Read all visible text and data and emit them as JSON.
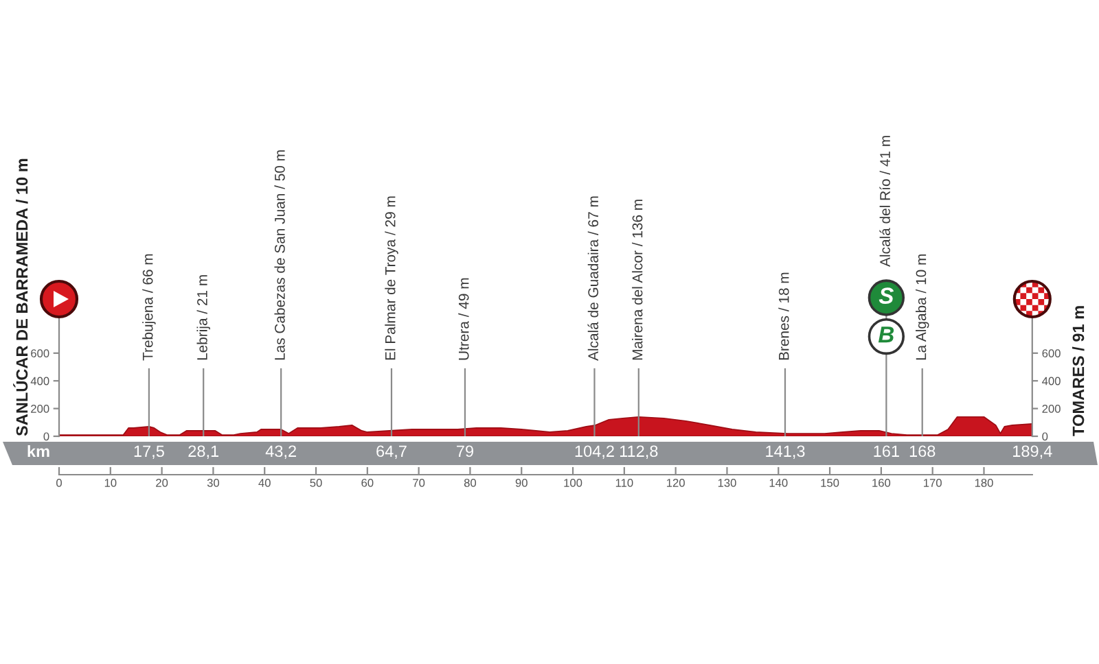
{
  "chart_data": {
    "type": "area",
    "color": "#c8141e",
    "x": [
      0,
      12.5,
      13.5,
      14.5,
      17.5,
      18.5,
      19.7,
      21,
      23.5,
      24.8,
      28.1,
      30.4,
      31.7,
      34,
      35.3,
      38.5,
      39.3,
      43.2,
      44.7,
      46.4,
      50.9,
      54.5,
      57,
      58.9,
      60,
      64.3,
      68.7,
      77.6,
      81.2,
      86,
      90,
      92.8,
      95.5,
      99,
      102.6,
      104.4,
      107,
      109.7,
      112.8,
      117.7,
      122,
      126.6,
      131,
      135.6,
      141.8,
      149,
      152.5,
      156,
      159.6,
      162,
      165,
      171,
      173,
      174.8,
      180,
      182.3,
      183.2,
      184,
      185.5,
      189.4
    ],
    "values": [
      10,
      10,
      60,
      60,
      70,
      60,
      30,
      10,
      10,
      40,
      40,
      40,
      10,
      10,
      20,
      30,
      50,
      50,
      20,
      60,
      60,
      70,
      80,
      40,
      30,
      40,
      50,
      50,
      60,
      60,
      50,
      40,
      30,
      40,
      70,
      80,
      120,
      130,
      140,
      130,
      110,
      80,
      50,
      30,
      20,
      20,
      30,
      40,
      40,
      20,
      10,
      10,
      50,
      140,
      140,
      80,
      20,
      70,
      80,
      90
    ],
    "xlim": [
      0,
      189.4
    ],
    "xticks": [
      0,
      10,
      20,
      30,
      40,
      50,
      60,
      70,
      80,
      90,
      100,
      110,
      120,
      130,
      140,
      150,
      160,
      170,
      180
    ],
    "ylim": [
      0,
      1100
    ],
    "yticks": [
      0,
      200,
      400,
      600
    ],
    "y2lim": [
      0,
      1100
    ],
    "y2ticks": [
      0,
      200,
      400,
      600
    ],
    "ylabel": "SANLÚCAR DE BARRAMEDA / 10 m",
    "y2label": "TOMARES / 91 m",
    "x2label": "km",
    "x2lim": [
      0,
      189.4
    ],
    "x2ticks": [
      {
        "value": 17.5,
        "label": "17,5"
      },
      {
        "value": 28.1,
        "label": "28,1"
      },
      {
        "value": 43.2,
        "label": "43,2"
      },
      {
        "value": 64.7,
        "label": "64,7"
      },
      79,
      {
        "value": 104.2,
        "label": "104,2"
      },
      {
        "value": 112.8,
        "label": "112,8"
      },
      {
        "value": 141.3,
        "label": "141,3"
      },
      161,
      168,
      {
        "value": 189.4,
        "label": "189,4"
      }
    ],
    "ref_lines": [
      {
        "axis": "x",
        "value": 17.5,
        "label": "Trebujena / 66 m"
      },
      {
        "axis": "x",
        "value": 28.1,
        "label": "Lebrija / 21 m"
      },
      {
        "axis": "x",
        "value": 43.2,
        "label": "Las Cabezas de San Juan / 50 m"
      },
      {
        "axis": "x",
        "value": 64.7,
        "label": "El Palmar de Troya / 29 m"
      },
      {
        "axis": "x",
        "value": 79,
        "label": "Utrera / 49 m"
      },
      {
        "axis": "x",
        "value": 104.2,
        "label": "Alcalá de Guadaira / 67 m"
      },
      {
        "axis": "x",
        "value": 112.8,
        "label": "Mairena del Alcor / 136 m"
      },
      {
        "axis": "x",
        "value": 141.3,
        "label": "Brenes / 18 m"
      },
      {
        "axis": "x",
        "value": 161,
        "label": "Alcalá del Río / 41 m"
      },
      {
        "axis": "x",
        "value": 168,
        "label": "La Algaba / 10 m"
      }
    ],
    "annotations": [
      {
        "text": "S",
        "x": 161,
        "y": 1000
      },
      {
        "text": "B",
        "x": 161,
        "y": 720
      }
    ]
  }
}
